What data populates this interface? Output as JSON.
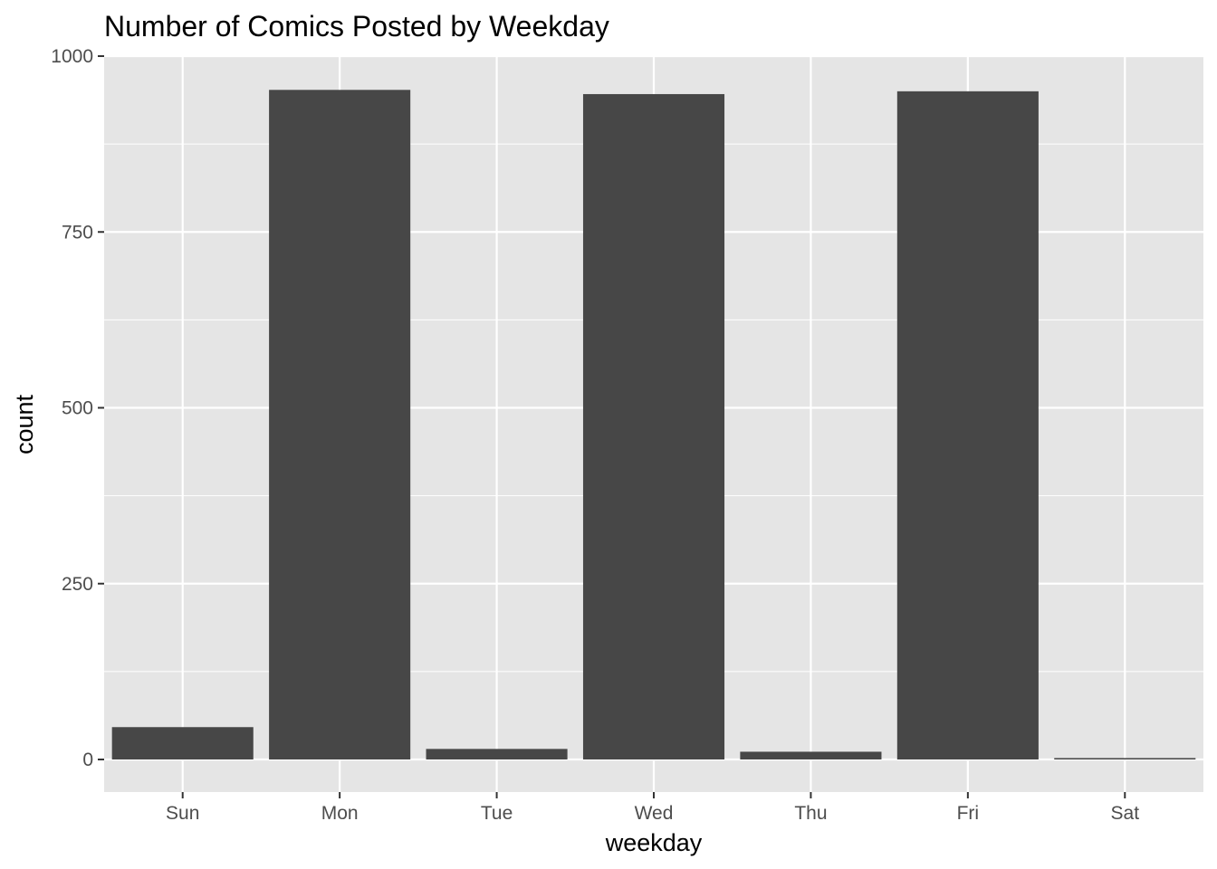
{
  "chart_data": {
    "type": "bar",
    "title": "Number of Comics Posted by Weekday",
    "xlabel": "weekday",
    "ylabel": "count",
    "categories": [
      "Sun",
      "Mon",
      "Tue",
      "Wed",
      "Thu",
      "Fri",
      "Sat"
    ],
    "values": [
      46,
      952,
      15,
      946,
      11,
      950,
      2
    ],
    "ylim": [
      -45,
      1000
    ],
    "yticks": [
      0,
      250,
      500,
      750,
      1000
    ],
    "ytick_labels": [
      "0",
      "250",
      "500",
      "750",
      "1000"
    ],
    "grid": true,
    "legend": "none",
    "colors": {
      "bar": "#474747",
      "panel": "#e5e5e5",
      "grid": "#ffffff"
    }
  }
}
